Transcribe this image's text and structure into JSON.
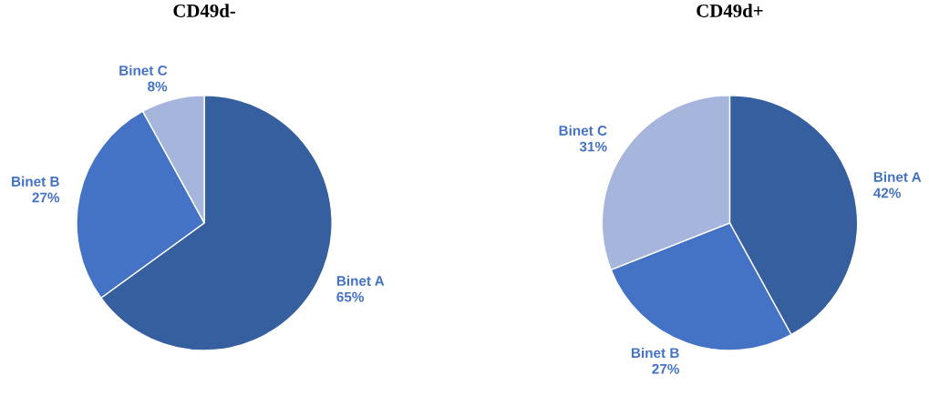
{
  "chart_data": [
    {
      "type": "pie",
      "title": "CD49d-",
      "categories": [
        "Binet A",
        "Binet B",
        "Binet C"
      ],
      "values": [
        65,
        27,
        8
      ],
      "value_labels": [
        "65%",
        "27%",
        "8%"
      ],
      "colors": [
        "#365f9f",
        "#4472c4",
        "#a6b5db"
      ]
    },
    {
      "type": "pie",
      "title": "CD49d+",
      "categories": [
        "Binet A",
        "Binet B",
        "Binet C"
      ],
      "values": [
        42,
        27,
        31
      ],
      "value_labels": [
        "42%",
        "27%",
        "31%"
      ],
      "colors": [
        "#365f9f",
        "#4472c4",
        "#a6b5db"
      ]
    }
  ]
}
